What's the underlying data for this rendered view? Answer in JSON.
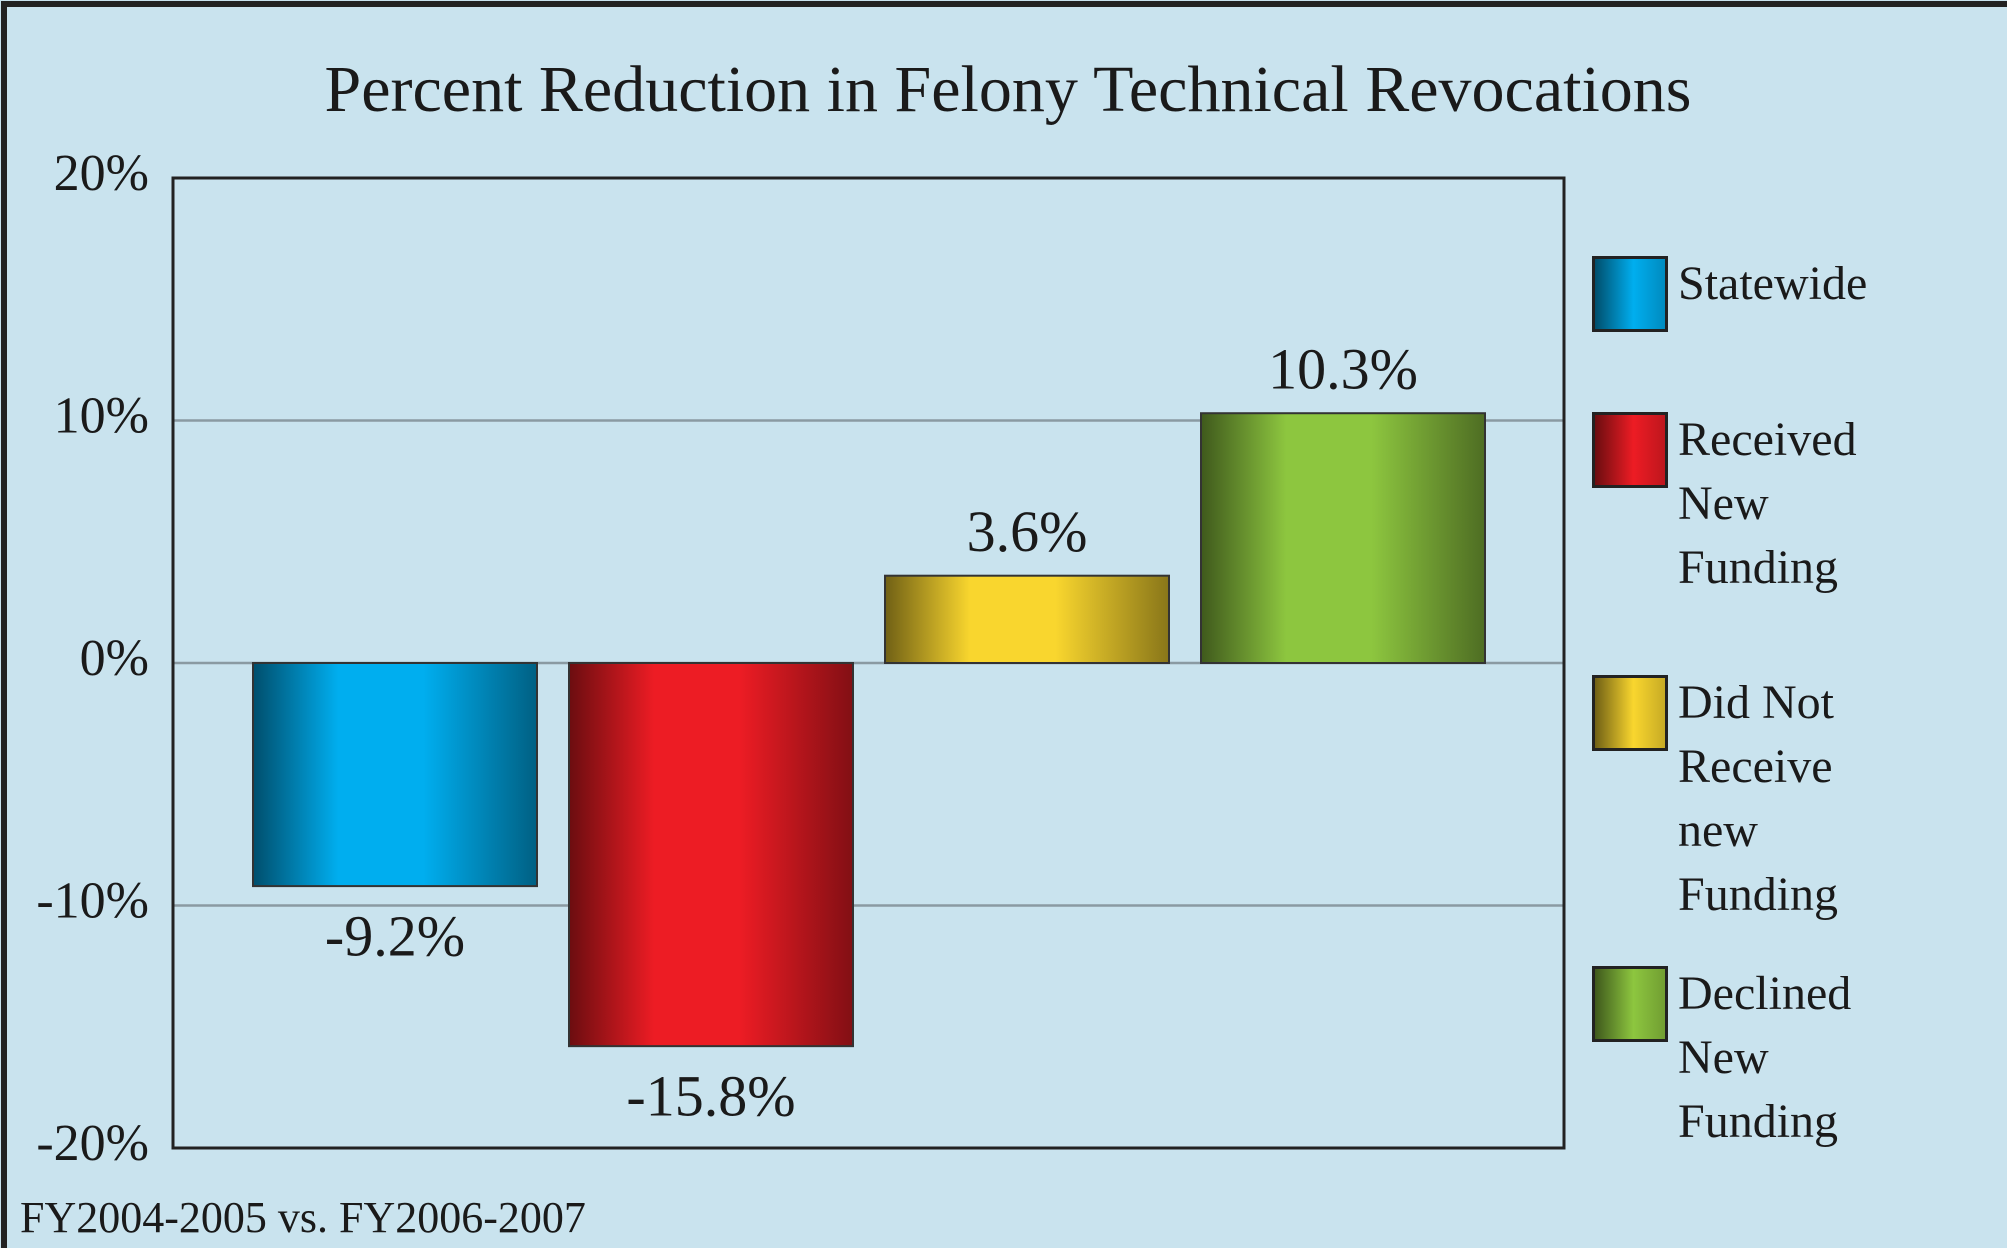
{
  "chart_data": {
    "type": "bar",
    "title": "Percent Reduction in Felony Technical Revocations",
    "subtitle": "FY2004-2005 vs. FY2006-2007",
    "series": [
      {
        "name": "Statewide",
        "color": "#00aeef",
        "values": [
          -9.2
        ],
        "value_labels": [
          "-9.2%"
        ]
      },
      {
        "name": "Received New Funding",
        "color": "#ed1c24",
        "values": [
          -15.8
        ],
        "value_labels": [
          "-15.8%"
        ]
      },
      {
        "name": "Did Not Receive new Funding",
        "color": "#f9d62e",
        "values": [
          3.6
        ],
        "value_labels": [
          "3.6%"
        ]
      },
      {
        "name": "Declined New Funding",
        "color": "#8dc63f",
        "values": [
          10.3
        ],
        "value_labels": [
          "10.3%"
        ]
      }
    ],
    "ylim": [
      -20,
      20
    ],
    "yticks": [
      {
        "value": -20,
        "label": "-20%"
      },
      {
        "value": -10,
        "label": "-10%"
      },
      {
        "value": 0,
        "label": "0%"
      },
      {
        "value": 10,
        "label": "10%"
      },
      {
        "value": 20,
        "label": "20%"
      }
    ],
    "grid": true,
    "legend": "right"
  }
}
